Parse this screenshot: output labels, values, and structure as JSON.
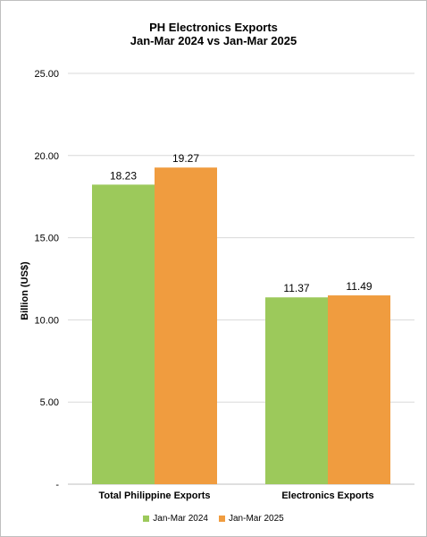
{
  "chart_data": {
    "type": "bar",
    "title_lines": [
      "PH Electronics Exports",
      "Jan-Mar 2024 vs Jan-Mar 2025"
    ],
    "ylabel": "Billion (US$)",
    "xlabel": "",
    "ylim": [
      0,
      25
    ],
    "yticks": [
      "-",
      "5.00",
      "10.00",
      "15.00",
      "20.00",
      "25.00"
    ],
    "categories": [
      "Total Philippine Exports",
      "Electronics Exports"
    ],
    "series": [
      {
        "name": "Jan-Mar 2024",
        "color": "#9cc95b",
        "values": [
          18.23,
          11.37
        ],
        "labels": [
          "18.23",
          "11.37"
        ]
      },
      {
        "name": "Jan-Mar 2025",
        "color": "#f09c3f",
        "values": [
          19.27,
          11.49
        ],
        "labels": [
          "19.27",
          "11.49"
        ]
      }
    ],
    "grid": true,
    "legend": "bottom"
  }
}
